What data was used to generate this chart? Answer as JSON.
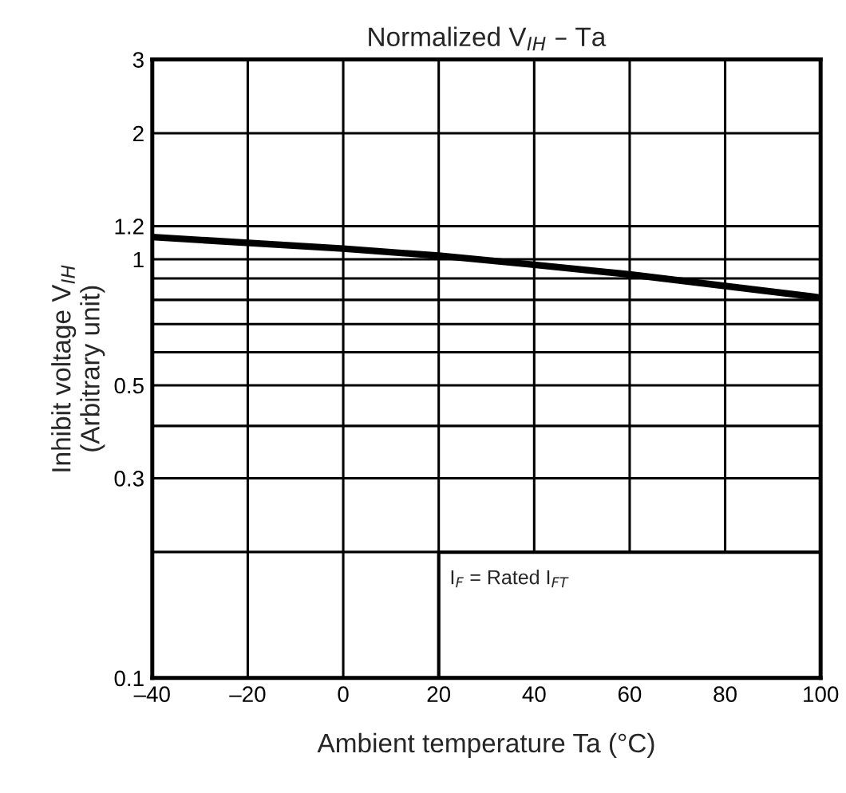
{
  "chart_data": {
    "type": "line",
    "title": "Normalized V$_{IH}$ – Ta",
    "xlabel": "Ambient temperature Ta (°C)",
    "ylabel": "Inhibit voltage V$_{IH}$\n(Arbitrary unit)",
    "x": [
      -40,
      0,
      20,
      40,
      60,
      100
    ],
    "series": [
      {
        "color": "#000000",
        "values": [
          1.13,
          1.06,
          1.02,
          0.97,
          0.92,
          0.81
        ]
      }
    ],
    "xlim": [
      -40,
      100
    ],
    "xticks": [
      {
        "value": -40,
        "label": "–40"
      },
      {
        "value": -20,
        "label": "–20"
      },
      0,
      20,
      40,
      60,
      80,
      100
    ],
    "ylim": [
      0.1,
      3
    ],
    "log": "y",
    "yticks": [
      0.1,
      {
        "value": 0.2,
        "label": null
      },
      0.3,
      {
        "value": 0.4,
        "label": null
      },
      0.5,
      {
        "value": 0.6,
        "label": null
      },
      {
        "value": 0.7,
        "label": null
      },
      {
        "value": 0.8,
        "label": null
      },
      {
        "value": 0.9,
        "label": null
      },
      1,
      1.2,
      2,
      3
    ],
    "grid": true,
    "line_style": "solid",
    "marker": "none",
    "annotations": [
      "I$_{F}$ = Rated I$_{FT}$"
    ]
  }
}
